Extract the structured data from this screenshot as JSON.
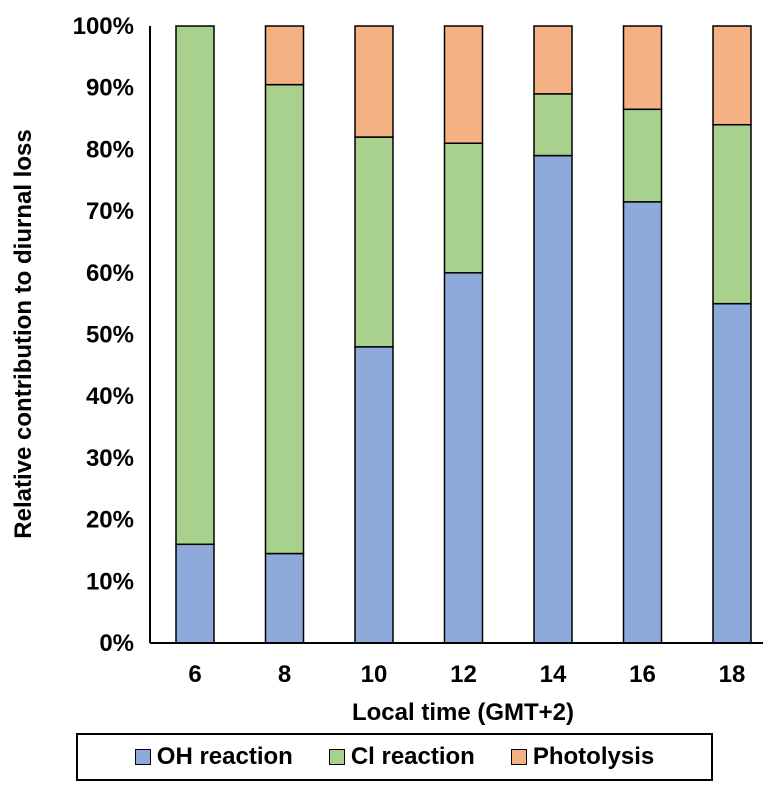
{
  "chart_data": {
    "type": "bar",
    "stacked": true,
    "percent_stacked": true,
    "categories": [
      "6",
      "8",
      "10",
      "12",
      "14",
      "16",
      "18"
    ],
    "series": [
      {
        "name": "OH reaction",
        "color": "#8eaadb",
        "values": [
          16,
          14.5,
          48,
          60,
          79,
          71.5,
          55
        ]
      },
      {
        "name": "Cl reaction",
        "color": "#a9d18e",
        "values": [
          84,
          76,
          34,
          21,
          10,
          15,
          29
        ]
      },
      {
        "name": "Photolysis",
        "color": "#f4b183",
        "values": [
          0,
          9.5,
          18,
          19,
          11,
          13.5,
          16
        ]
      }
    ],
    "xlabel": "Local time (GMT+2)",
    "ylabel": "Relative contribution to diurnal loss",
    "ylim": [
      0,
      100
    ],
    "yticks": [
      "0%",
      "10%",
      "20%",
      "30%",
      "40%",
      "50%",
      "60%",
      "70%",
      "80%",
      "90%",
      "100%"
    ],
    "grid": false,
    "legend_position": "bottom"
  }
}
